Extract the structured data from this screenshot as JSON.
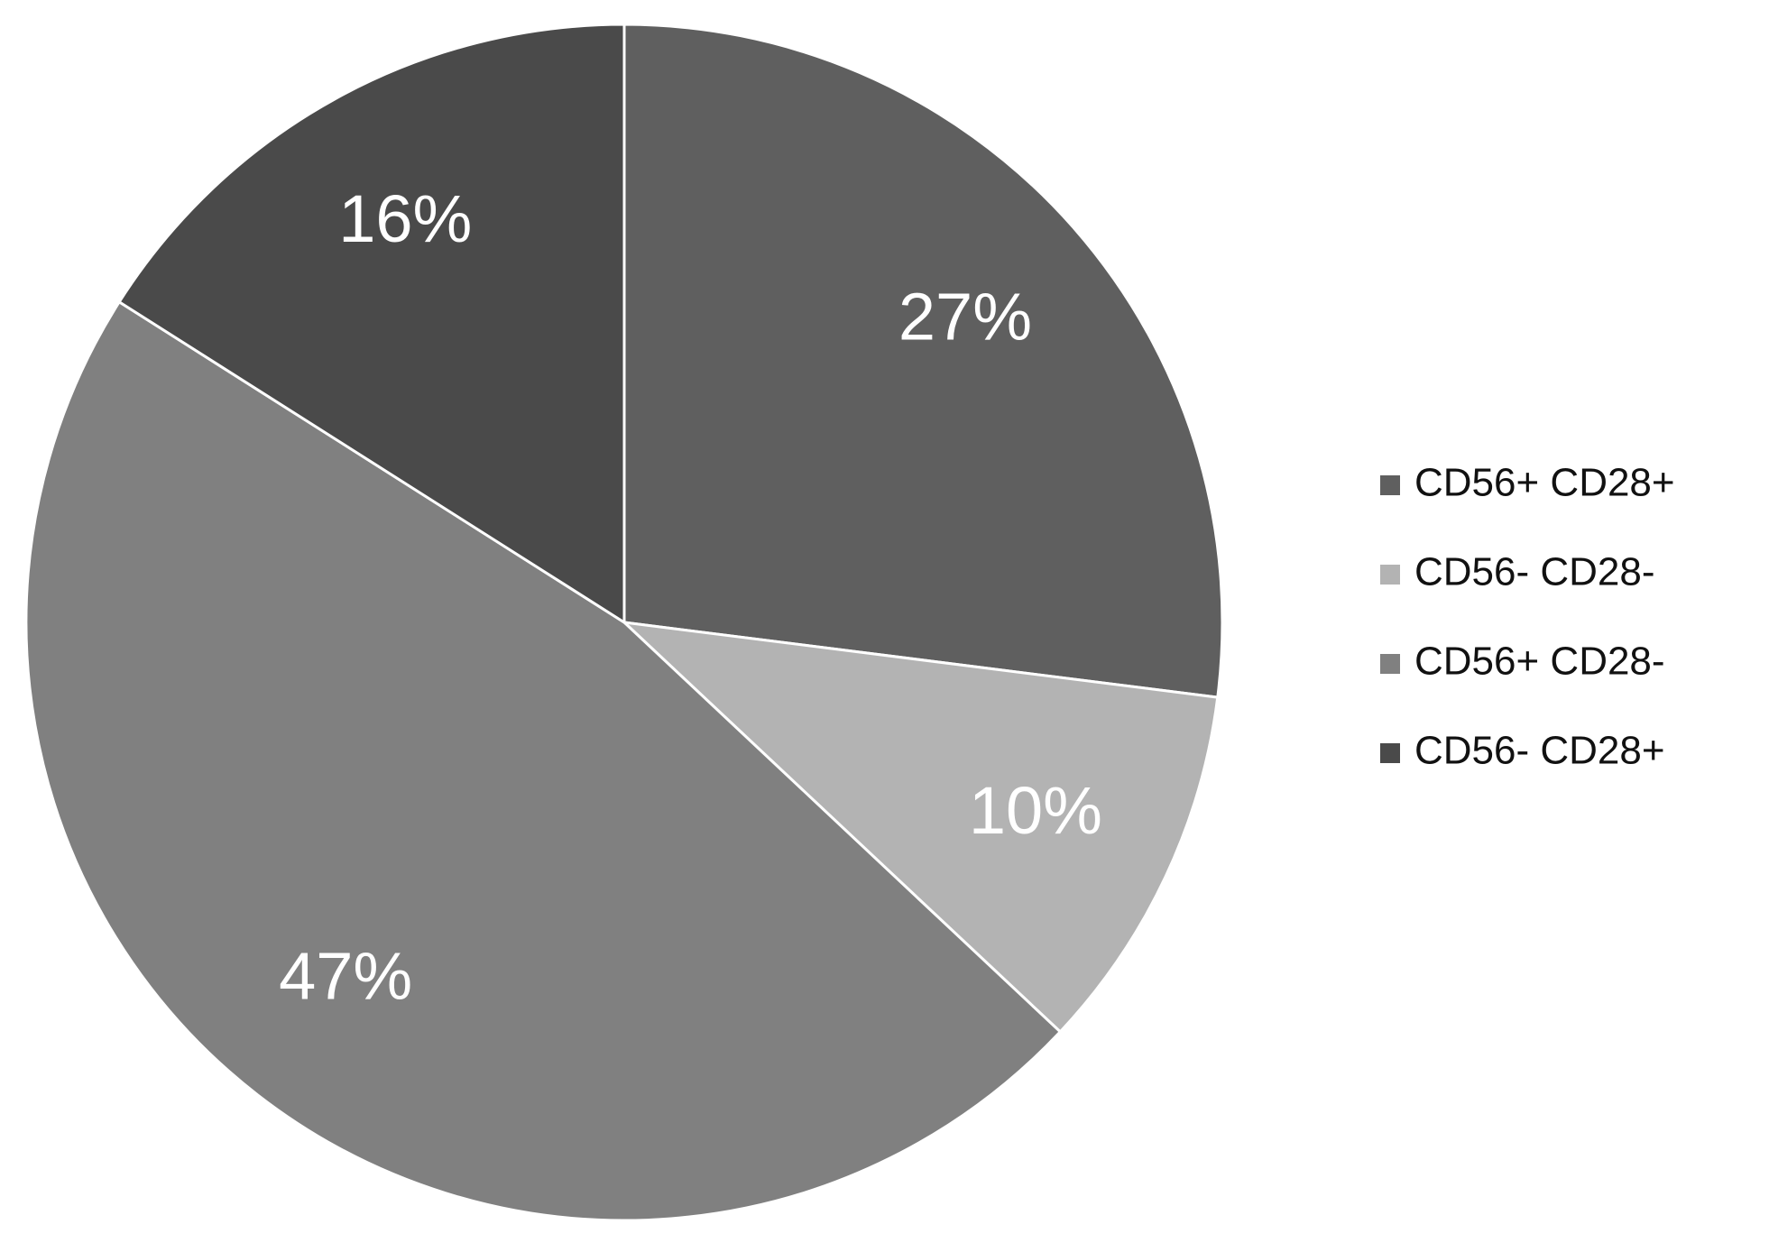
{
  "chart_data": {
    "type": "pie",
    "categories": [
      "CD56+ CD28+",
      "CD56- CD28-",
      "CD56+ CD28-",
      "CD56- CD28+"
    ],
    "values": [
      27,
      10,
      47,
      16
    ],
    "value_labels": [
      "27%",
      "10%",
      "47%",
      "16%"
    ],
    "colors": [
      "#5f5f5f",
      "#b3b3b3",
      "#808080",
      "#4a4a4a"
    ],
    "legend": "right"
  }
}
